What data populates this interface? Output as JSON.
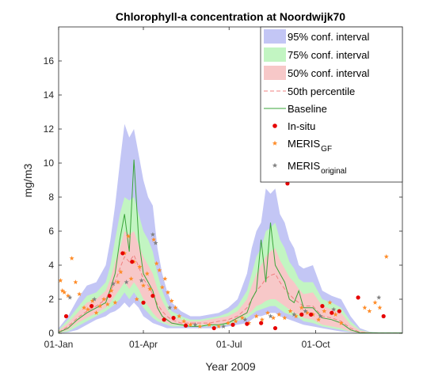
{
  "chart_data": {
    "type": "area",
    "title": "Chlorophyll-a concentration at Noordwijk70",
    "xlabel": "Year 2009",
    "ylabel": "mg/m3",
    "xlim": [
      0,
      365
    ],
    "ylim": [
      0,
      18
    ],
    "x_ticks": [
      {
        "day": 0,
        "label": "01-Jan"
      },
      {
        "day": 90,
        "label": "01-Apr"
      },
      {
        "day": 181,
        "label": "01-Jul"
      },
      {
        "day": 273,
        "label": "01-Oct"
      }
    ],
    "y_ticks": [
      0,
      2,
      4,
      6,
      8,
      10,
      12,
      14,
      16
    ],
    "grid": false,
    "legend_position": "top-right",
    "colors": {
      "ci95": "#c3c6f5",
      "ci75": "#c2f5c2",
      "ci50": "#f7c8c8",
      "p50": "#f08080",
      "baseline": "#3aa63a",
      "insitu": "#e60000",
      "meris_gf": "#ff8c28",
      "meris_original": "#808080"
    },
    "legend": [
      {
        "key": "ci95",
        "text": "95% conf. interval",
        "sub": ""
      },
      {
        "key": "ci75",
        "text": "75% conf. interval",
        "sub": ""
      },
      {
        "key": "ci50",
        "text": "50% conf. interval",
        "sub": ""
      },
      {
        "key": "p50",
        "text": "50th percentile",
        "sub": ""
      },
      {
        "key": "baseline",
        "text": "Baseline",
        "sub": ""
      },
      {
        "key": "insitu",
        "text": "In-situ",
        "sub": ""
      },
      {
        "key": "meris_gf",
        "text": "MERIS",
        "sub": "GF"
      },
      {
        "key": "meris_original",
        "text": "MERIS",
        "sub": "original"
      }
    ],
    "day": [
      0,
      10,
      20,
      30,
      40,
      50,
      55,
      60,
      65,
      70,
      75,
      80,
      85,
      90,
      95,
      100,
      105,
      110,
      115,
      120,
      130,
      140,
      150,
      160,
      170,
      180,
      190,
      200,
      205,
      210,
      215,
      220,
      225,
      230,
      235,
      240,
      245,
      250,
      255,
      260,
      270,
      280,
      290,
      300,
      310,
      320,
      330,
      340,
      350,
      365
    ],
    "ci95_upper": [
      0.3,
      1.0,
      2.0,
      2.8,
      3.0,
      4.0,
      5.5,
      7.5,
      10.0,
      12.3,
      11.5,
      12.0,
      10.5,
      9.0,
      8.0,
      7.5,
      5.0,
      3.5,
      2.5,
      1.8,
      1.3,
      1.0,
      1.0,
      1.1,
      1.2,
      1.5,
      2.0,
      3.5,
      5.0,
      6.0,
      6.5,
      8.5,
      8.2,
      8.5,
      7.0,
      6.5,
      5.5,
      5.0,
      4.0,
      3.8,
      4.0,
      2.5,
      2.2,
      2.0,
      1.0,
      0.3,
      0.1,
      0.05,
      0.05,
      0.05
    ],
    "ci95_lower": [
      0,
      0.05,
      0.2,
      0.5,
      0.8,
      1.0,
      1.2,
      1.3,
      1.5,
      1.8,
      1.5,
      1.8,
      1.5,
      1.0,
      0.8,
      0.6,
      0.5,
      0.4,
      0.3,
      0.3,
      0.3,
      0.3,
      0.3,
      0.3,
      0.3,
      0.4,
      0.5,
      0.6,
      0.8,
      1.0,
      1.0,
      1.1,
      1.2,
      1.2,
      1.0,
      0.9,
      0.8,
      0.7,
      0.6,
      0.5,
      0.4,
      0.3,
      0.2,
      0.1,
      0.05,
      0,
      0,
      0,
      0,
      0
    ],
    "ci75_upper": [
      0.2,
      0.8,
      1.5,
      2.2,
      2.4,
      3.0,
      4.0,
      5.5,
      7.0,
      8.0,
      7.8,
      8.0,
      7.0,
      6.0,
      5.5,
      4.8,
      3.5,
      2.5,
      1.8,
      1.3,
      1.0,
      0.8,
      0.8,
      0.9,
      1.0,
      1.2,
      1.6,
      2.5,
      3.5,
      4.5,
      5.0,
      6.0,
      6.2,
      6.5,
      5.5,
      5.0,
      4.2,
      3.8,
      3.2,
      3.0,
      3.0,
      2.0,
      1.8,
      1.5,
      0.7,
      0.2,
      0.08,
      0.04,
      0.04,
      0.04
    ],
    "ci75_lower": [
      0,
      0.1,
      0.4,
      0.7,
      1.0,
      1.3,
      1.5,
      1.7,
      2.0,
      2.4,
      2.0,
      2.4,
      2.0,
      1.5,
      1.2,
      0.9,
      0.7,
      0.6,
      0.5,
      0.4,
      0.4,
      0.4,
      0.4,
      0.4,
      0.4,
      0.5,
      0.7,
      0.9,
      1.1,
      1.3,
      1.4,
      1.5,
      1.6,
      1.6,
      1.4,
      1.2,
      1.1,
      1.0,
      0.9,
      0.7,
      0.6,
      0.4,
      0.3,
      0.2,
      0.08,
      0,
      0,
      0,
      0,
      0
    ],
    "ci50_upper": [
      0.15,
      0.6,
      1.2,
      1.8,
      2.0,
      2.5,
      3.2,
      4.2,
      5.0,
      6.0,
      5.8,
      6.0,
      5.2,
      4.5,
      4.0,
      3.5,
      2.6,
      1.9,
      1.4,
      1.0,
      0.8,
      0.7,
      0.7,
      0.8,
      0.9,
      1.0,
      1.3,
      2.0,
      2.8,
      3.5,
      4.0,
      4.5,
      4.8,
      5.0,
      4.3,
      3.8,
      3.3,
      3.0,
      2.6,
      2.3,
      2.4,
      1.6,
      1.4,
      1.2,
      0.5,
      0.15,
      0.06,
      0.03,
      0.03,
      0.03
    ],
    "ci50_lower": [
      0,
      0.2,
      0.6,
      0.9,
      1.2,
      1.5,
      1.8,
      2.2,
      2.6,
      3.0,
      2.6,
      3.0,
      2.6,
      2.0,
      1.6,
      1.2,
      0.9,
      0.7,
      0.6,
      0.5,
      0.5,
      0.5,
      0.5,
      0.5,
      0.5,
      0.6,
      0.8,
      1.1,
      1.3,
      1.6,
      1.7,
      1.9,
      2.0,
      2.0,
      1.8,
      1.6,
      1.4,
      1.2,
      1.1,
      0.9,
      0.8,
      0.5,
      0.4,
      0.3,
      0.1,
      0,
      0,
      0,
      0,
      0
    ],
    "p50": [
      0.05,
      0.4,
      0.9,
      1.3,
      1.6,
      2.0,
      2.5,
      3.0,
      3.8,
      4.5,
      4.2,
      4.6,
      3.9,
      3.2,
      2.8,
      2.3,
      1.7,
      1.3,
      1.0,
      0.8,
      0.6,
      0.6,
      0.6,
      0.6,
      0.7,
      0.8,
      1.0,
      1.5,
      2.0,
      2.5,
      2.8,
      3.2,
      3.4,
      3.5,
      3.0,
      2.6,
      2.3,
      2.0,
      1.8,
      1.6,
      1.6,
      1.0,
      0.9,
      0.7,
      0.3,
      0.05,
      0.02,
      0.02,
      0.02,
      0.02
    ],
    "baseline": [
      0.05,
      0.3,
      0.8,
      1.2,
      1.5,
      1.8,
      2.6,
      3.5,
      5.5,
      7.0,
      4.8,
      10.2,
      5.5,
      3.5,
      3.0,
      2.5,
      1.5,
      1.0,
      0.8,
      0.6,
      0.5,
      0.4,
      0.4,
      0.5,
      0.5,
      0.6,
      0.9,
      1.2,
      2.0,
      2.5,
      5.5,
      3.0,
      6.5,
      4.0,
      3.5,
      3.0,
      2.0,
      1.8,
      2.5,
      1.5,
      1.5,
      0.9,
      0.8,
      0.6,
      0.2,
      0.03,
      0.02,
      0.02,
      0.02,
      0.02
    ],
    "insitu": [
      {
        "x": 8,
        "y": 1.0
      },
      {
        "x": 35,
        "y": 1.6
      },
      {
        "x": 54,
        "y": 2.2
      },
      {
        "x": 68,
        "y": 4.7
      },
      {
        "x": 78,
        "y": 4.2
      },
      {
        "x": 90,
        "y": 1.8
      },
      {
        "x": 100,
        "y": 2.2
      },
      {
        "x": 112,
        "y": 0.8
      },
      {
        "x": 122,
        "y": 0.9
      },
      {
        "x": 135,
        "y": 0.45
      },
      {
        "x": 165,
        "y": 0.3
      },
      {
        "x": 185,
        "y": 0.5
      },
      {
        "x": 200,
        "y": 0.55
      },
      {
        "x": 215,
        "y": 0.6
      },
      {
        "x": 230,
        "y": 0.3
      },
      {
        "x": 243,
        "y": 8.8
      },
      {
        "x": 258,
        "y": 1.1
      },
      {
        "x": 268,
        "y": 1.1
      },
      {
        "x": 280,
        "y": 1.6
      },
      {
        "x": 290,
        "y": 1.2
      },
      {
        "x": 298,
        "y": 1.3
      },
      {
        "x": 318,
        "y": 2.1
      },
      {
        "x": 345,
        "y": 1.0
      }
    ],
    "meris_gf": [
      {
        "x": 2,
        "y": 3.1
      },
      {
        "x": 4,
        "y": 2.5
      },
      {
        "x": 6,
        "y": 2.4
      },
      {
        "x": 10,
        "y": 2.2
      },
      {
        "x": 14,
        "y": 4.4
      },
      {
        "x": 18,
        "y": 3.0
      },
      {
        "x": 22,
        "y": 2.3
      },
      {
        "x": 27,
        "y": 1.5
      },
      {
        "x": 31,
        "y": 1.4
      },
      {
        "x": 36,
        "y": 1.9
      },
      {
        "x": 40,
        "y": 1.2
      },
      {
        "x": 44,
        "y": 1.6
      },
      {
        "x": 48,
        "y": 2.0
      },
      {
        "x": 52,
        "y": 1.7
      },
      {
        "x": 56,
        "y": 2.5
      },
      {
        "x": 60,
        "y": 1.8
      },
      {
        "x": 63,
        "y": 3.0
      },
      {
        "x": 66,
        "y": 3.6
      },
      {
        "x": 70,
        "y": 4.7
      },
      {
        "x": 74,
        "y": 5.7
      },
      {
        "x": 77,
        "y": 3.2
      },
      {
        "x": 80,
        "y": 4.2
      },
      {
        "x": 83,
        "y": 2.0
      },
      {
        "x": 86,
        "y": 3.9
      },
      {
        "x": 90,
        "y": 2.8
      },
      {
        "x": 94,
        "y": 3.5
      },
      {
        "x": 97,
        "y": 2.6
      },
      {
        "x": 101,
        "y": 5.5
      },
      {
        "x": 104,
        "y": 4.1
      },
      {
        "x": 107,
        "y": 3.7
      },
      {
        "x": 110,
        "y": 2.7
      },
      {
        "x": 113,
        "y": 3.2
      },
      {
        "x": 116,
        "y": 2.4
      },
      {
        "x": 120,
        "y": 1.9
      },
      {
        "x": 124,
        "y": 1.5
      },
      {
        "x": 128,
        "y": 1.0
      },
      {
        "x": 133,
        "y": 0.7
      },
      {
        "x": 140,
        "y": 0.5
      },
      {
        "x": 150,
        "y": 0.4
      },
      {
        "x": 160,
        "y": 0.5
      },
      {
        "x": 170,
        "y": 0.4
      },
      {
        "x": 180,
        "y": 0.6
      },
      {
        "x": 188,
        "y": 0.7
      },
      {
        "x": 195,
        "y": 0.9
      },
      {
        "x": 202,
        "y": 0.6
      },
      {
        "x": 210,
        "y": 1.0
      },
      {
        "x": 216,
        "y": 0.8
      },
      {
        "x": 222,
        "y": 1.2
      },
      {
        "x": 228,
        "y": 0.9
      },
      {
        "x": 234,
        "y": 1.1
      },
      {
        "x": 240,
        "y": 0.9
      },
      {
        "x": 246,
        "y": 1.3
      },
      {
        "x": 252,
        "y": 1.0
      },
      {
        "x": 258,
        "y": 1.5
      },
      {
        "x": 264,
        "y": 1.2
      },
      {
        "x": 270,
        "y": 1.1
      },
      {
        "x": 276,
        "y": 0.8
      },
      {
        "x": 282,
        "y": 1.3
      },
      {
        "x": 288,
        "y": 1.8
      },
      {
        "x": 294,
        "y": 1.1
      },
      {
        "x": 300,
        "y": 0.6
      },
      {
        "x": 325,
        "y": 1.5
      },
      {
        "x": 330,
        "y": 1.3
      },
      {
        "x": 336,
        "y": 1.8
      },
      {
        "x": 341,
        "y": 1.5
      },
      {
        "x": 348,
        "y": 4.5
      }
    ],
    "meris_original": [
      {
        "x": 12,
        "y": 2.1
      },
      {
        "x": 38,
        "y": 2.0
      },
      {
        "x": 58,
        "y": 2.9
      },
      {
        "x": 72,
        "y": 3.0
      },
      {
        "x": 88,
        "y": 3.1
      },
      {
        "x": 100,
        "y": 5.8
      },
      {
        "x": 103,
        "y": 5.3
      },
      {
        "x": 118,
        "y": 1.5
      },
      {
        "x": 145,
        "y": 0.5
      },
      {
        "x": 175,
        "y": 0.4
      },
      {
        "x": 198,
        "y": 0.8
      },
      {
        "x": 225,
        "y": 1.0
      },
      {
        "x": 250,
        "y": 1.1
      },
      {
        "x": 262,
        "y": 1.3
      },
      {
        "x": 278,
        "y": 1.0
      },
      {
        "x": 292,
        "y": 1.4
      },
      {
        "x": 340,
        "y": 2.1
      }
    ]
  }
}
